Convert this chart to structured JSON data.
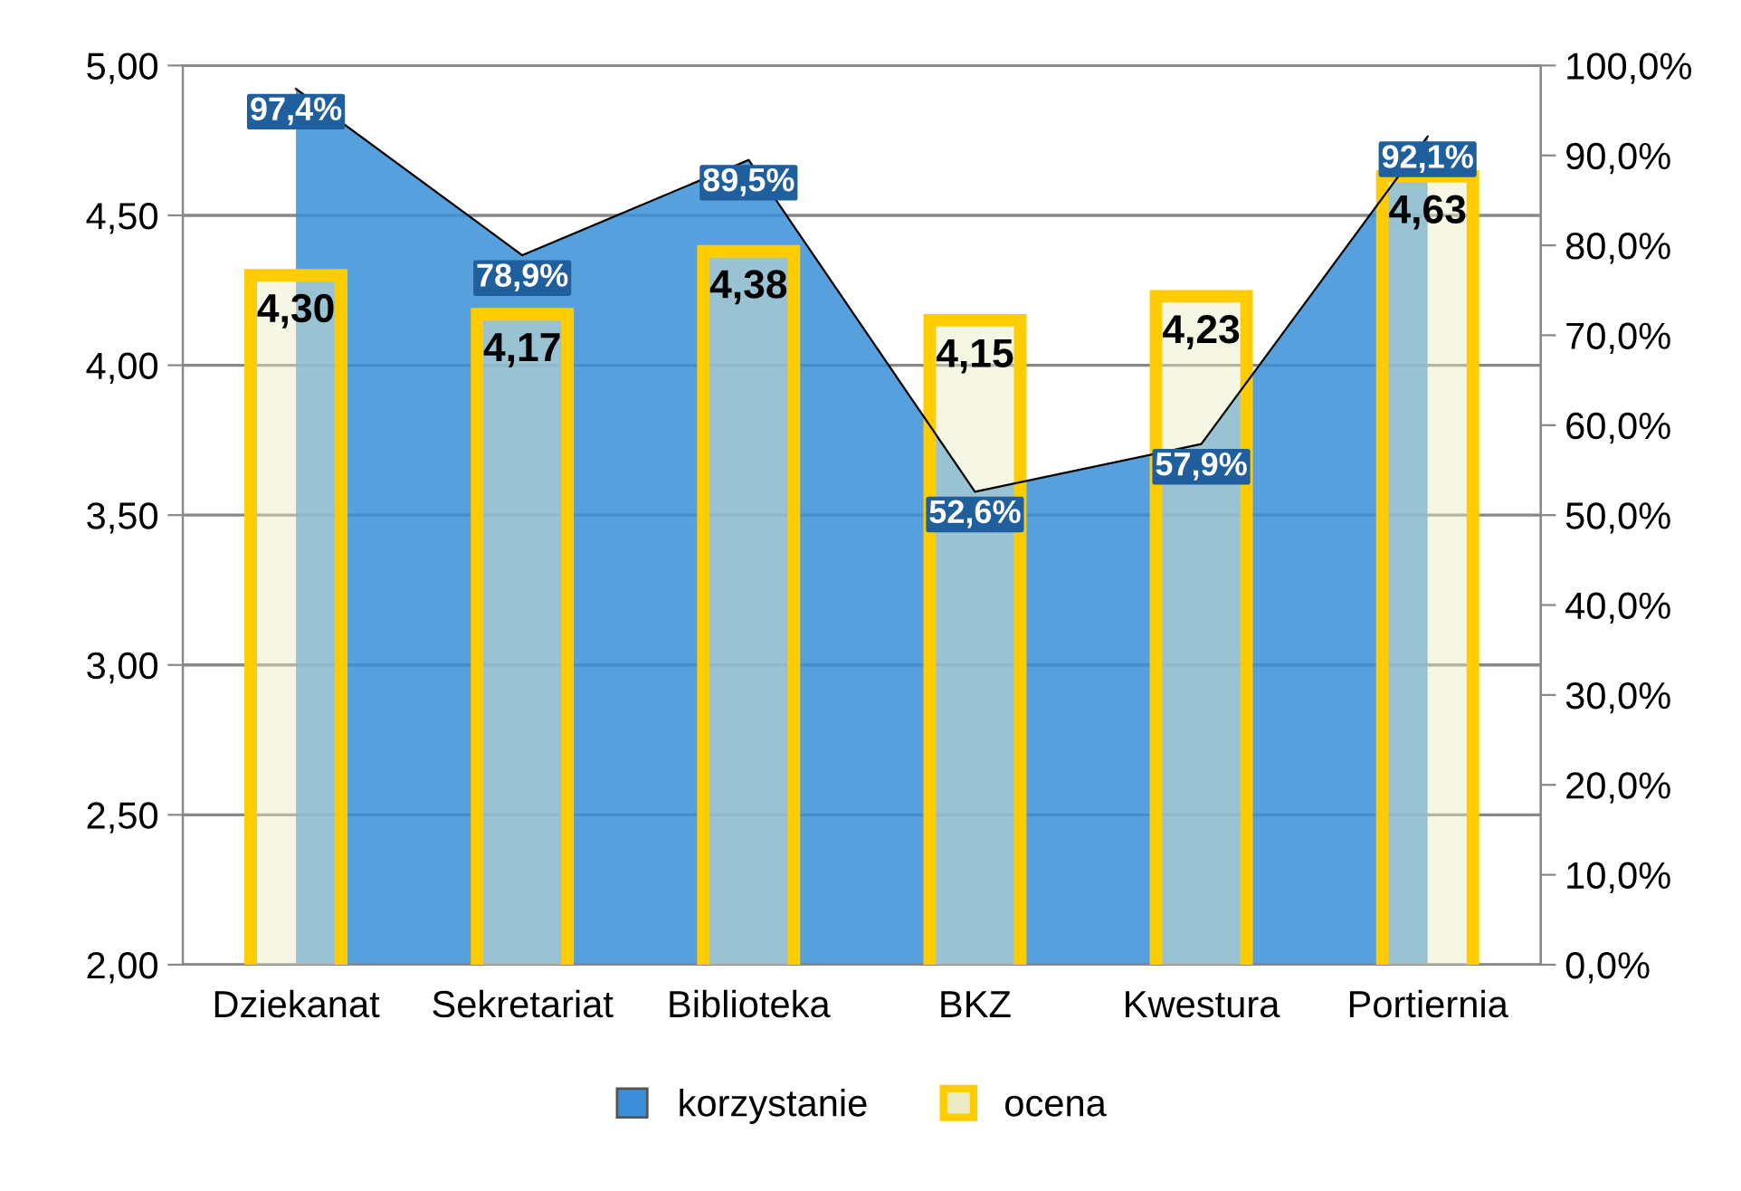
{
  "chart_data": {
    "type": "bar",
    "categories": [
      "Dziekanat",
      "Sekretariat",
      "Biblioteka",
      "BKZ",
      "Kwestura",
      "Portiernia"
    ],
    "series": [
      {
        "name": "korzystanie",
        "type": "area",
        "axis": "y2",
        "color": "#3a8fd8",
        "values": [
          97.4,
          78.9,
          89.5,
          52.6,
          57.9,
          92.1
        ],
        "value_labels": [
          "97,4%",
          "78,9%",
          "89,5%",
          "52,6%",
          "57,9%",
          "92,1%"
        ]
      },
      {
        "name": "ocena",
        "color": "#ffcc00",
        "values": [
          4.3,
          4.17,
          4.38,
          4.15,
          4.23,
          4.63
        ],
        "value_labels": [
          "4,30",
          "4,17",
          "4,38",
          "4,15",
          "4,23",
          "4,63"
        ]
      }
    ],
    "ylim": [
      2,
      5
    ],
    "yticks": [
      {
        "value": 2,
        "label": "2,00"
      },
      {
        "value": 2.5,
        "label": "2,50"
      },
      {
        "value": 3,
        "label": "3,00"
      },
      {
        "value": 3.5,
        "label": "3,50"
      },
      {
        "value": 4,
        "label": "4,00"
      },
      {
        "value": 4.5,
        "label": "4,50"
      },
      {
        "value": 5,
        "label": "5,00"
      }
    ],
    "y2lim": [
      0,
      100
    ],
    "y2ticks": [
      {
        "value": 0,
        "label": "0,0%"
      },
      {
        "value": 10,
        "label": "10,0%"
      },
      {
        "value": 20,
        "label": "20,0%"
      },
      {
        "value": 30,
        "label": "30,0%"
      },
      {
        "value": 40,
        "label": "40,0%"
      },
      {
        "value": 50,
        "label": "50,0%"
      },
      {
        "value": 60,
        "label": "60,0%"
      },
      {
        "value": 70,
        "label": "70,0%"
      },
      {
        "value": 80,
        "label": "80,0%"
      },
      {
        "value": 90,
        "label": "90,0%"
      },
      {
        "value": 100,
        "label": "100,0%"
      }
    ],
    "grid": "y",
    "legend": "bottom"
  }
}
